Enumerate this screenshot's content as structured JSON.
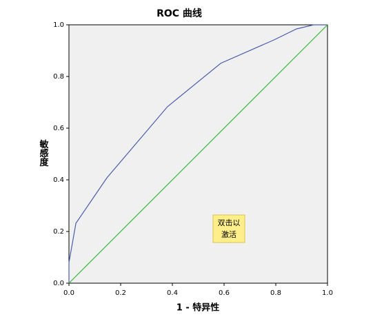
{
  "chart_data": {
    "type": "line",
    "title": "ROC 曲线",
    "xlabel": "1 - 特异性",
    "ylabel": "敏感度",
    "annotation": [
      "双击以",
      "激活"
    ],
    "xlim": [
      0,
      1
    ],
    "ylim": [
      0,
      1
    ],
    "xticks": [
      {
        "value": 0,
        "label": "0.0"
      },
      {
        "value": 0.2,
        "label": "0.2"
      },
      {
        "value": 0.4,
        "label": "0.4"
      },
      {
        "value": 0.6,
        "label": "0.6"
      },
      {
        "value": 0.8,
        "label": "0.8"
      },
      {
        "value": 1,
        "label": "1.0"
      }
    ],
    "yticks": [
      {
        "value": 0,
        "label": "0.0"
      },
      {
        "value": 0.2,
        "label": "0.2"
      },
      {
        "value": 0.4,
        "label": "0.4"
      },
      {
        "value": 0.6,
        "label": "0.6"
      },
      {
        "value": 0.8,
        "label": "0.8"
      },
      {
        "value": 1,
        "label": "1.0"
      }
    ],
    "series": [
      {
        "color": "#4a5bb0",
        "x": [
          0,
          0,
          0.027,
          0.147,
          0.381,
          0.587,
          0.792,
          0.88,
          0.947,
          1
        ],
        "values": [
          0,
          0.08,
          0.232,
          0.408,
          0.683,
          0.851,
          0.941,
          0.984,
          1,
          1
        ]
      },
      {
        "color": "#33bb33",
        "x": [
          0,
          1
        ],
        "values": [
          0,
          1
        ]
      }
    ]
  }
}
